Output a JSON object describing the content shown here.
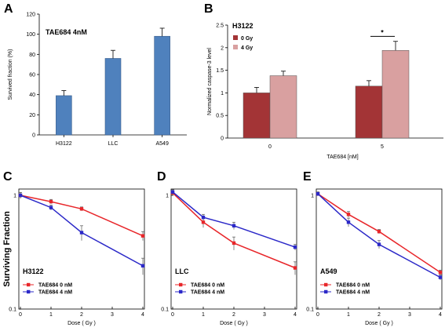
{
  "chart_data": [
    {
      "panel": "A",
      "type": "bar",
      "annotation": "TAE684 4nM",
      "ylabel": "Survived fraction (%)",
      "xlabel": "",
      "ylim": [
        0,
        120
      ],
      "yticks": [
        0,
        20,
        40,
        60,
        80,
        100,
        120
      ],
      "categories": [
        "H3122",
        "LLC",
        "A549"
      ],
      "values": [
        39,
        76,
        98
      ],
      "errors": [
        5,
        8,
        8
      ],
      "color": "#4f81bd"
    },
    {
      "panel": "B",
      "type": "bar",
      "annotation": "H3122",
      "ylabel": "Normalized caspase-3 level",
      "xlabel": "TAE684 [nM]",
      "ylim": [
        0,
        2.5
      ],
      "yticks": [
        0,
        0.5,
        1,
        1.5,
        2,
        2.5
      ],
      "categories": [
        "0",
        "5"
      ],
      "series": [
        {
          "name": "0 Gy",
          "values": [
            1.0,
            1.15
          ],
          "errors": [
            0.12,
            0.12
          ],
          "color": "#a33436"
        },
        {
          "name": "4 Gy",
          "values": [
            1.38,
            1.94
          ],
          "errors": [
            0.1,
            0.2
          ],
          "color": "#d9a0a0"
        }
      ],
      "significance": "*",
      "legend_position": "top-left"
    },
    {
      "panel": "C",
      "type": "line",
      "annotation": "H3122",
      "ylabel": "Surviving Fraction",
      "xlabel": "Dose ( Gy )",
      "yscale": "log",
      "ylim": [
        0.1,
        1
      ],
      "yticks": [
        0.1,
        1
      ],
      "xlim": [
        0,
        4
      ],
      "xticks": [
        0,
        1,
        2,
        3,
        4
      ],
      "series": [
        {
          "name": "TAE684 0 nM",
          "color": "#e8262a",
          "x": [
            0,
            1,
            2,
            4
          ],
          "y": [
            1.0,
            0.88,
            0.76,
            0.44
          ],
          "errors": [
            0.06,
            0.04,
            0.03,
            0.04
          ]
        },
        {
          "name": "TAE684 4 nM",
          "color": "#2b28c8",
          "x": [
            0,
            1,
            2,
            4
          ],
          "y": [
            1.0,
            0.78,
            0.47,
            0.24
          ],
          "errors": [
            0.06,
            0.04,
            0.07,
            0.04
          ]
        }
      ],
      "legend_position": "bottom-left"
    },
    {
      "panel": "D",
      "type": "line",
      "annotation": "LLC",
      "ylabel": "",
      "xlabel": "Dose ( Gy )",
      "yscale": "log",
      "ylim": [
        0.1,
        1
      ],
      "yticks": [
        0.1,
        1
      ],
      "xlim": [
        0,
        4
      ],
      "xticks": [
        0,
        1,
        2,
        3,
        4
      ],
      "series": [
        {
          "name": "TAE684 0 nM",
          "color": "#e8262a",
          "x": [
            0,
            1,
            2,
            4
          ],
          "y": [
            1.05,
            0.58,
            0.38,
            0.23
          ],
          "errors": [
            0.05,
            0.06,
            0.05,
            0.03
          ]
        },
        {
          "name": "TAE684 4 nM",
          "color": "#2b28c8",
          "x": [
            0,
            1,
            2,
            4
          ],
          "y": [
            1.07,
            0.64,
            0.54,
            0.35
          ],
          "errors": [
            0.05,
            0.04,
            0.04,
            0.02
          ]
        }
      ],
      "legend_position": "bottom-left"
    },
    {
      "panel": "E",
      "type": "line",
      "annotation": "A549",
      "ylabel": "",
      "xlabel": "Dose ( Gy )",
      "yscale": "log",
      "ylim": [
        0.1,
        1
      ],
      "yticks": [
        0.1,
        1
      ],
      "xlim": [
        0,
        4
      ],
      "xticks": [
        0,
        1,
        2,
        3,
        4
      ],
      "series": [
        {
          "name": "TAE684 0 nM",
          "color": "#e8262a",
          "x": [
            0,
            1,
            2,
            4
          ],
          "y": [
            1.03,
            0.68,
            0.48,
            0.21
          ],
          "errors": [
            0.04,
            0.04,
            0.02,
            0.01
          ]
        },
        {
          "name": "TAE684 4 nM",
          "color": "#2b28c8",
          "x": [
            0,
            1,
            2,
            4
          ],
          "y": [
            1.03,
            0.58,
            0.37,
            0.19
          ],
          "errors": [
            0.04,
            0.05,
            0.03,
            0.01
          ]
        }
      ],
      "legend_position": "bottom-left"
    }
  ]
}
